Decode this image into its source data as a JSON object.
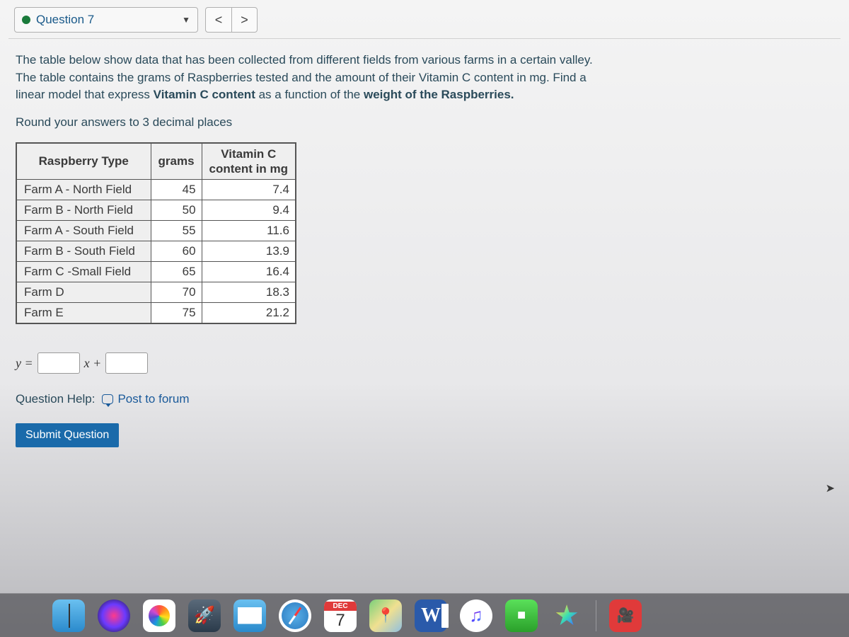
{
  "header": {
    "question_label": "Question 7",
    "dot_color": "#1a7a3a",
    "prev_label": "<",
    "next_label": ">"
  },
  "prompt": {
    "line1": "The table below show data that has been collected from different fields from various farms in a certain valley.",
    "line2": "The table contains the grams of Raspberries tested and the amount of their Vitamin C content in mg. Find a",
    "line3_a": "linear model that express ",
    "line3_bold1": "Vitamin C content",
    "line3_b": " as a function of the ",
    "line3_bold2": "weight of the Raspberries.",
    "rounding": "Round your answers to 3 decimal places"
  },
  "table": {
    "type": "table",
    "columns": [
      "Raspberry Type",
      "grams",
      "Vitamin C\ncontent in mg"
    ],
    "rows": [
      {
        "label": "Farm A - North Field",
        "grams": "45",
        "vitc": "7.4"
      },
      {
        "label": "Farm B - North Field",
        "grams": "50",
        "vitc": "9.4"
      },
      {
        "label": "Farm A - South Field",
        "grams": "55",
        "vitc": "11.6"
      },
      {
        "label": "Farm B - South Field",
        "grams": "60",
        "vitc": "13.9"
      },
      {
        "label": "Farm C -Small Field",
        "grams": "65",
        "vitc": "16.4"
      },
      {
        "label": "Farm D",
        "grams": "70",
        "vitc": "18.3"
      },
      {
        "label": "Farm E",
        "grams": "75",
        "vitc": "21.2"
      }
    ],
    "header_bg": "#efefef",
    "border_color": "#555555",
    "font_size": 17
  },
  "equation": {
    "y_equals": "y =",
    "x_plus": "x +"
  },
  "help": {
    "prefix": "Question Help:",
    "forum_link": "Post to forum"
  },
  "submit": {
    "label": "Submit Question"
  },
  "dock": {
    "calendar": {
      "month": "DEC",
      "day": "7"
    },
    "word_label": "W"
  }
}
